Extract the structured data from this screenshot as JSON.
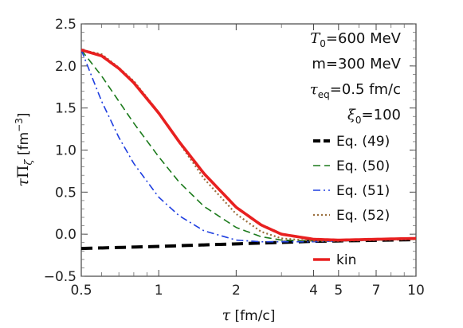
{
  "chart_data": {
    "type": "line",
    "xscale": "log",
    "xlim": [
      0.5,
      10
    ],
    "ylim": [
      -0.5,
      2.5
    ],
    "xlabel": "τ [fm/c]",
    "ylabel": "τΠζ [fm⁻³]",
    "x_ticks": [
      0.5,
      1,
      2,
      4,
      5,
      7,
      10
    ],
    "x_tick_labels": [
      "0.5",
      "1",
      "2",
      "4",
      "5",
      "7",
      "10"
    ],
    "y_ticks": [
      -0.5,
      0.0,
      0.5,
      1.0,
      1.5,
      2.0,
      2.5
    ],
    "y_tick_labels": [
      "−0.5",
      "0.0",
      "0.5",
      "1.0",
      "1.5",
      "2.0",
      "2.5"
    ],
    "annotations": [
      "T0=600 MeV",
      "m=300 MeV",
      "τeq=0.5 fm/c",
      "ξ0=100"
    ],
    "legend_position": "right",
    "series": [
      {
        "name": "Eq. (49)",
        "color": "#000000",
        "style": "dashed-thick",
        "x": [
          0.5,
          1.0,
          2.0,
          4.0,
          10.0
        ],
        "y": [
          -0.17,
          -0.145,
          -0.115,
          -0.085,
          -0.065
        ]
      },
      {
        "name": "Eq. (50)",
        "color": "#1b7a1b",
        "style": "dashed",
        "x": [
          0.5,
          0.6,
          0.7,
          0.8,
          1.0,
          1.2,
          1.5,
          2.0,
          2.5,
          3.0,
          4.0,
          5.0,
          7.0,
          10.0
        ],
        "y": [
          2.19,
          1.88,
          1.58,
          1.32,
          0.92,
          0.62,
          0.33,
          0.08,
          -0.03,
          -0.07,
          -0.08,
          -0.08,
          -0.07,
          -0.06
        ]
      },
      {
        "name": "Eq. (51)",
        "color": "#1f3fe0",
        "style": "dashdot",
        "x": [
          0.5,
          0.55,
          0.6,
          0.7,
          0.8,
          1.0,
          1.2,
          1.5,
          2.0,
          2.5,
          3.0,
          4.0,
          5.0,
          7.0,
          10.0
        ],
        "y": [
          2.19,
          1.87,
          1.58,
          1.15,
          0.84,
          0.44,
          0.22,
          0.04,
          -0.07,
          -0.09,
          -0.09,
          -0.09,
          -0.08,
          -0.07,
          -0.06
        ]
      },
      {
        "name": "Eq. (52)",
        "color": "#9a6e3c",
        "style": "dotted",
        "x": [
          0.5,
          0.6,
          0.7,
          0.8,
          1.0,
          1.2,
          1.5,
          2.0,
          2.5,
          3.0,
          4.0,
          5.0,
          7.0,
          10.0
        ],
        "y": [
          2.19,
          2.14,
          1.98,
          1.82,
          1.45,
          1.09,
          0.66,
          0.24,
          0.03,
          -0.05,
          -0.08,
          -0.08,
          -0.07,
          -0.06
        ]
      },
      {
        "name": "kin",
        "color": "#e82020",
        "style": "solid-thick",
        "x": [
          0.5,
          0.6,
          0.7,
          0.8,
          1.0,
          1.2,
          1.5,
          2.0,
          2.5,
          3.0,
          4.0,
          5.0,
          7.0,
          10.0
        ],
        "y": [
          2.19,
          2.12,
          1.97,
          1.8,
          1.44,
          1.1,
          0.72,
          0.32,
          0.11,
          0.0,
          -0.06,
          -0.07,
          -0.06,
          -0.05
        ]
      }
    ]
  }
}
